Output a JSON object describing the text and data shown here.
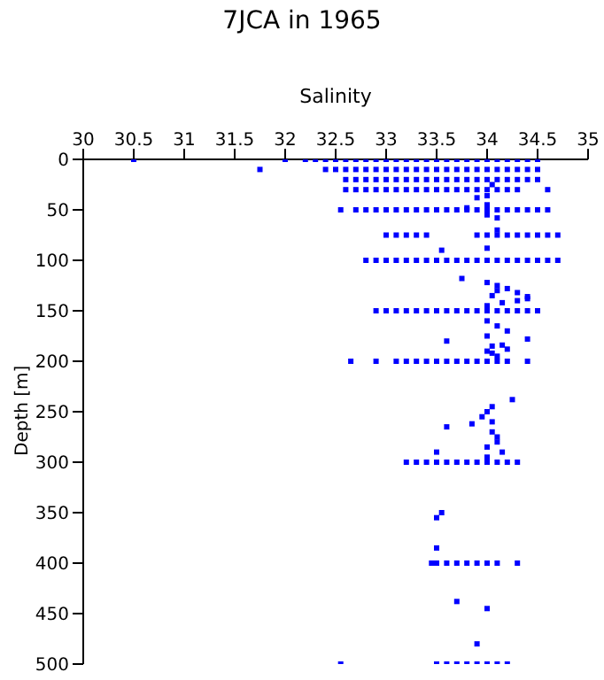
{
  "chart_data": {
    "type": "scatter",
    "title": "7JCA in 1965",
    "xlabel": "Salinity",
    "ylabel": "Depth [m]",
    "marker": "square",
    "xlim": [
      30,
      35
    ],
    "xticks": [
      30,
      30.5,
      31,
      31.5,
      32,
      32.5,
      33,
      33.5,
      34,
      34.5,
      35
    ],
    "ylim": [
      500,
      0
    ],
    "yticks": [
      0,
      50,
      100,
      150,
      200,
      250,
      300,
      350,
      400,
      450,
      500
    ],
    "series": [
      {
        "color": "#0000ff",
        "x": [
          30.5,
          32.0,
          32.2,
          32.3,
          32.4,
          32.5,
          32.6,
          32.7,
          32.8,
          32.9,
          33.0,
          33.1,
          33.2,
          33.3,
          33.4,
          33.5,
          33.6,
          33.7,
          33.8,
          33.9,
          34.0,
          34.1,
          34.2,
          34.3,
          34.4,
          34.5,
          31.75,
          32.4,
          32.5,
          32.6,
          32.7,
          32.8,
          32.9,
          33.0,
          33.1,
          33.2,
          33.3,
          33.4,
          33.5,
          33.6,
          33.7,
          33.8,
          33.9,
          34.0,
          34.1,
          34.2,
          34.3,
          34.4,
          34.5,
          32.6,
          32.7,
          32.8,
          32.9,
          33.0,
          33.1,
          33.2,
          33.3,
          33.4,
          33.5,
          33.6,
          33.7,
          33.8,
          33.9,
          34.0,
          34.1,
          34.2,
          34.3,
          34.4,
          34.5,
          32.6,
          32.7,
          32.8,
          32.9,
          33.0,
          33.1,
          33.2,
          33.3,
          33.4,
          33.5,
          33.6,
          33.7,
          33.8,
          33.9,
          34.0,
          34.1,
          34.2,
          34.3,
          34.6,
          33.9,
          34.0,
          34.05,
          32.55,
          32.7,
          32.8,
          32.9,
          33.0,
          33.1,
          33.2,
          33.3,
          33.4,
          33.5,
          33.6,
          33.7,
          33.8,
          33.9,
          34.0,
          34.1,
          34.2,
          34.3,
          34.4,
          34.5,
          34.6,
          34.0,
          34.1,
          33.8,
          34.0,
          33.0,
          33.1,
          33.2,
          33.3,
          33.4,
          33.9,
          34.0,
          34.1,
          34.2,
          34.3,
          34.4,
          34.5,
          34.6,
          34.7,
          33.55,
          34.0,
          34.1,
          32.8,
          32.9,
          33.0,
          33.1,
          33.2,
          33.3,
          33.4,
          33.5,
          33.6,
          33.7,
          33.8,
          33.9,
          34.0,
          34.1,
          34.2,
          34.3,
          34.4,
          34.5,
          34.6,
          34.7,
          33.75,
          34.0,
          34.1,
          34.05,
          34.2,
          34.0,
          34.3,
          34.4,
          34.1,
          34.15,
          34.3,
          34.4,
          32.9,
          33.0,
          33.1,
          33.2,
          33.3,
          33.4,
          33.5,
          33.6,
          33.7,
          33.8,
          33.9,
          34.0,
          34.1,
          34.2,
          34.3,
          34.4,
          34.5,
          34.0,
          34.1,
          34.0,
          33.6,
          34.05,
          34.2,
          34.0,
          34.1,
          34.2,
          34.4,
          34.05,
          34.15,
          32.65,
          32.9,
          33.1,
          33.2,
          33.3,
          33.4,
          33.5,
          33.6,
          33.7,
          33.8,
          33.9,
          34.0,
          34.1,
          34.2,
          34.4,
          34.25,
          34.05,
          33.95,
          34.0,
          33.6,
          33.85,
          34.05,
          34.1,
          33.5,
          34.0,
          34.1,
          34.0,
          34.15,
          34.05,
          33.2,
          33.3,
          33.4,
          33.5,
          33.6,
          33.7,
          33.8,
          33.9,
          34.0,
          34.1,
          34.2,
          34.3,
          33.5,
          33.55,
          33.5,
          33.45,
          33.5,
          33.6,
          33.7,
          33.8,
          33.9,
          34.0,
          34.1,
          34.3,
          33.7,
          34.0,
          33.9,
          32.55,
          33.5,
          33.6,
          33.7,
          33.8,
          33.9,
          34.0,
          34.1,
          34.2
        ],
        "values": [
          0,
          0,
          0,
          0,
          0,
          0,
          0,
          0,
          0,
          0,
          0,
          0,
          0,
          0,
          0,
          0,
          0,
          0,
          0,
          0,
          0,
          0,
          0,
          0,
          0,
          0,
          10,
          10,
          10,
          10,
          10,
          10,
          10,
          10,
          10,
          10,
          10,
          10,
          10,
          10,
          10,
          10,
          10,
          10,
          10,
          10,
          10,
          10,
          10,
          20,
          20,
          20,
          20,
          20,
          20,
          20,
          20,
          20,
          20,
          20,
          20,
          20,
          20,
          20,
          20,
          20,
          20,
          20,
          20,
          30,
          30,
          30,
          30,
          30,
          30,
          30,
          30,
          30,
          30,
          30,
          30,
          30,
          30,
          30,
          30,
          30,
          30,
          30,
          38,
          36,
          25,
          50,
          50,
          50,
          50,
          50,
          50,
          50,
          50,
          50,
          50,
          50,
          50,
          50,
          50,
          50,
          50,
          50,
          50,
          50,
          50,
          50,
          55,
          58,
          48,
          45,
          75,
          75,
          75,
          75,
          75,
          75,
          75,
          75,
          75,
          75,
          75,
          75,
          75,
          75,
          90,
          88,
          70,
          100,
          100,
          100,
          100,
          100,
          100,
          100,
          100,
          100,
          100,
          100,
          100,
          100,
          100,
          100,
          100,
          100,
          100,
          100,
          100,
          118,
          122,
          125,
          135,
          128,
          145,
          140,
          138,
          130,
          142,
          132,
          136,
          150,
          150,
          150,
          150,
          150,
          150,
          150,
          150,
          150,
          150,
          150,
          150,
          150,
          150,
          150,
          150,
          150,
          160,
          165,
          175,
          180,
          185,
          170,
          190,
          195,
          188,
          178,
          192,
          184,
          200,
          200,
          200,
          200,
          200,
          200,
          200,
          200,
          200,
          200,
          200,
          200,
          200,
          200,
          200,
          238,
          245,
          255,
          250,
          265,
          262,
          270,
          280,
          290,
          285,
          275,
          295,
          290,
          260,
          300,
          300,
          300,
          300,
          300,
          300,
          300,
          300,
          300,
          300,
          300,
          300,
          355,
          350,
          385,
          400,
          400,
          400,
          400,
          400,
          400,
          400,
          400,
          400,
          438,
          445,
          480,
          500,
          500,
          500,
          500,
          500,
          500,
          500,
          500,
          500
        ]
      }
    ]
  }
}
